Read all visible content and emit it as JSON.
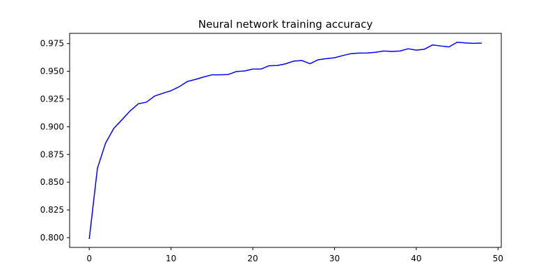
{
  "chart_data": {
    "type": "line",
    "title": "Neural network training accuracy",
    "xlabel": "",
    "ylabel": "",
    "xlim": [
      -2.4,
      50.4
    ],
    "ylim": [
      0.7912,
      0.9842
    ],
    "grid": false,
    "x_ticks": [
      0,
      10,
      20,
      30,
      40,
      50
    ],
    "y_ticks": [
      0.8,
      0.825,
      0.85,
      0.875,
      0.9,
      0.925,
      0.95,
      0.975
    ],
    "x_tick_labels": [
      "0",
      "10",
      "20",
      "30",
      "40",
      "50"
    ],
    "y_tick_labels": [
      "0.800",
      "0.825",
      "0.850",
      "0.875",
      "0.900",
      "0.925",
      "0.950",
      "0.975"
    ],
    "series": [
      {
        "color": "#0000ff",
        "x": [
          0,
          1,
          2,
          3,
          4,
          5,
          6,
          7,
          8,
          9,
          10,
          11,
          12,
          13,
          14,
          15,
          16,
          17,
          18,
          19,
          20,
          21,
          22,
          23,
          24,
          25,
          26,
          27,
          28,
          29,
          30,
          31,
          32,
          33,
          34,
          35,
          36,
          37,
          38,
          39,
          40,
          41,
          42,
          43,
          44,
          45,
          46,
          47,
          48
        ],
        "values": [
          0.7988,
          0.8626,
          0.8853,
          0.8985,
          0.9063,
          0.9143,
          0.9207,
          0.9222,
          0.9277,
          0.9302,
          0.9325,
          0.9361,
          0.9408,
          0.9427,
          0.9449,
          0.9468,
          0.9468,
          0.9471,
          0.9498,
          0.9503,
          0.952,
          0.952,
          0.955,
          0.9552,
          0.9567,
          0.9592,
          0.9597,
          0.9568,
          0.9604,
          0.9614,
          0.9622,
          0.9642,
          0.9659,
          0.9664,
          0.9665,
          0.9671,
          0.9683,
          0.9679,
          0.9683,
          0.9703,
          0.9691,
          0.9699,
          0.9738,
          0.9728,
          0.972,
          0.9762,
          0.9756,
          0.9752,
          0.9754
        ]
      }
    ]
  }
}
